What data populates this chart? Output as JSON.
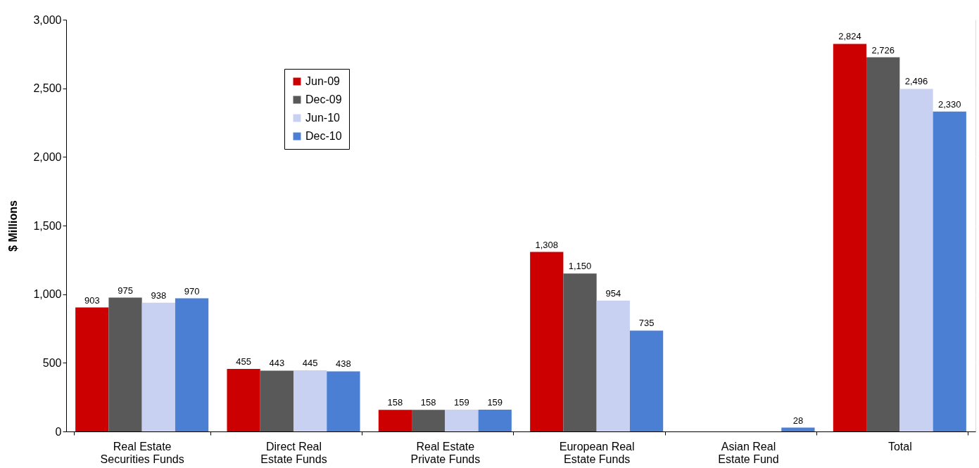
{
  "chart_data": {
    "type": "bar",
    "ylabel": "$ Millions",
    "categories": [
      "Real Estate Securities Funds",
      "Direct Real Estate Funds",
      "Real Estate Private Funds",
      "European Real Estate Funds",
      "Asian Real Estate Fund",
      "Total"
    ],
    "series": [
      {
        "name": "Jun-09",
        "color": "#cc0000",
        "values": [
          903,
          455,
          158,
          1308,
          null,
          2824
        ],
        "value_labels": [
          "903",
          "455",
          "158",
          "1,308",
          null,
          "2,824"
        ]
      },
      {
        "name": "Dec-09",
        "color": "#595959",
        "values": [
          975,
          443,
          158,
          1150,
          null,
          2726
        ],
        "value_labels": [
          "975",
          "443",
          "158",
          "1,150",
          null,
          "2,726"
        ]
      },
      {
        "name": "Jun-10",
        "color": "#c9d1f2",
        "values": [
          938,
          445,
          159,
          954,
          null,
          2496
        ],
        "value_labels": [
          "938",
          "445",
          "159",
          "954",
          null,
          "2,496"
        ]
      },
      {
        "name": "Dec-10",
        "color": "#4a7fd4",
        "values": [
          970,
          438,
          159,
          735,
          28,
          2330
        ],
        "value_labels": [
          "970",
          "438",
          "159",
          "735",
          "28",
          "2,330"
        ]
      }
    ],
    "ylim": [
      0,
      3000
    ],
    "yticks": [
      {
        "value": 0,
        "label": "0"
      },
      {
        "value": 500,
        "label": "500"
      },
      {
        "value": 1000,
        "label": "1,000"
      },
      {
        "value": 1500,
        "label": "1,500"
      },
      {
        "value": 2000,
        "label": "2,000"
      },
      {
        "value": 2500,
        "label": "2,500"
      },
      {
        "value": 3000,
        "label": "3,000"
      }
    ],
    "grid": "y",
    "legend": "top left"
  }
}
